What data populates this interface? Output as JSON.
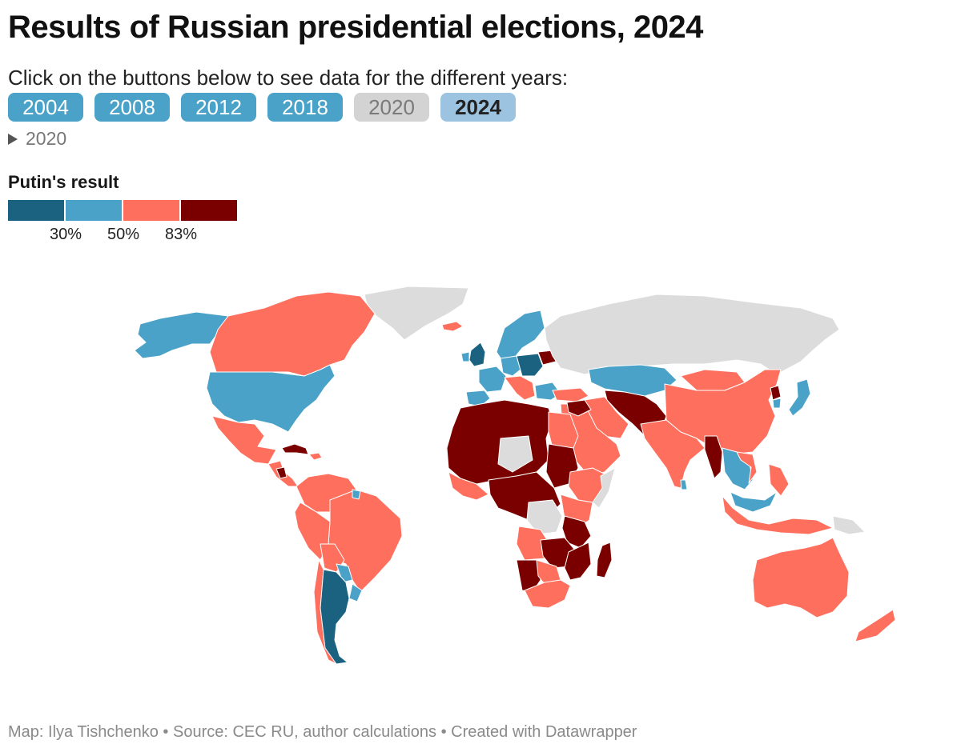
{
  "header": {
    "title": "Results of Russian presidential elections, 2024",
    "subtitle": "Click on the buttons below to see data for the different years:"
  },
  "buttons": [
    {
      "label": "2004",
      "state": "enabled"
    },
    {
      "label": "2008",
      "state": "enabled"
    },
    {
      "label": "2012",
      "state": "enabled"
    },
    {
      "label": "2018",
      "state": "enabled"
    },
    {
      "label": "2020",
      "state": "disabled"
    },
    {
      "label": "2024",
      "state": "selected"
    }
  ],
  "toggle": {
    "label": "2020"
  },
  "legend": {
    "title": "Putin's result",
    "colors": [
      "#1a6280",
      "#4aa2c8",
      "#fe6f5e",
      "#7a0000"
    ],
    "breaks": [
      "30%",
      "50%",
      "83%"
    ]
  },
  "map_colors": {
    "nodata": "#dcdcdc",
    "dark_blue": "#1a6280",
    "blue": "#4aa2c8",
    "salmon": "#fe6f5e",
    "dark_red": "#7a0000"
  },
  "footer": {
    "text": "Map: Ilya Tishchenko • Source: CEC RU, author calculations • Created with Datawrapper"
  }
}
